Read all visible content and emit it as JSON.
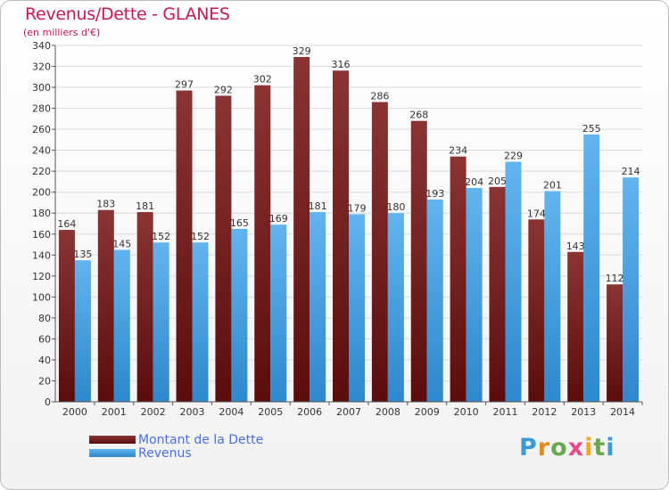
{
  "title": "Revenus/Dette - GLANES",
  "subtitle": "(en milliers d'€)",
  "logo": "Proxiti",
  "colors": {
    "debt_top": "#8a3434",
    "debt_bottom": "#5a0d0d",
    "revenue_top": "#62b4ee",
    "revenue_bottom": "#2e88cc",
    "grid": "#d9d9d9",
    "axis": "#555555",
    "label": "#333333"
  },
  "chart_data": {
    "type": "bar",
    "title": "Revenus/Dette - GLANES",
    "ylabel": "(en milliers d'€)",
    "categories": [
      "2000",
      "2001",
      "2002",
      "2003",
      "2004",
      "2005",
      "2006",
      "2007",
      "2008",
      "2009",
      "2010",
      "2011",
      "2012",
      "2013",
      "2014"
    ],
    "series": [
      {
        "name": "Montant de la Dette",
        "values": [
          164,
          183,
          181,
          297,
          292,
          302,
          329,
          316,
          286,
          268,
          234,
          205,
          174,
          143,
          112
        ]
      },
      {
        "name": "Revenus",
        "values": [
          135,
          145,
          152,
          152,
          165,
          169,
          181,
          179,
          180,
          193,
          204,
          229,
          201,
          255,
          214
        ]
      }
    ],
    "ylim": [
      0,
      340
    ],
    "yticks": [
      0,
      20,
      40,
      60,
      80,
      100,
      120,
      140,
      160,
      180,
      200,
      220,
      240,
      260,
      280,
      300,
      320,
      340
    ],
    "grid": true,
    "legend": "bottom-left"
  }
}
